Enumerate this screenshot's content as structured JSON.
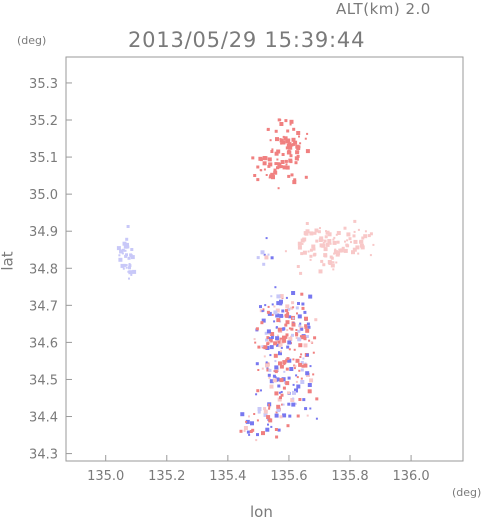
{
  "header": {
    "altitude_label": "ALT(km) 2.0",
    "datetime": "2013/05/29 15:39:44"
  },
  "chart_data": {
    "type": "scatter",
    "xlabel": "lon",
    "ylabel": "lat",
    "x_unit": "(deg)",
    "y_unit": "(deg)",
    "xlim": [
      134.87,
      136.17
    ],
    "ylim": [
      34.28,
      35.37
    ],
    "x_ticks": [
      135.0,
      135.2,
      135.4,
      135.6,
      135.8,
      136.0
    ],
    "x_tick_labels": [
      "135.0",
      "135.2",
      "135.4",
      "135.6",
      "135.8",
      "136.0"
    ],
    "y_ticks": [
      34.3,
      34.4,
      34.5,
      34.6,
      34.7,
      34.8,
      34.9,
      35.0,
      35.1,
      35.2,
      35.3
    ],
    "y_tick_labels": [
      "34.3",
      "34.4",
      "34.5",
      "34.6",
      "34.7",
      "34.8",
      "34.9",
      "35.0",
      "35.1",
      "35.2",
      "35.3"
    ],
    "grid": false,
    "colors": {
      "positive": "#f08080",
      "negative": "#7878f0",
      "weak_positive": "#f8c8c8",
      "weak_negative": "#c8c8f8"
    },
    "clusters": [
      {
        "lon": 135.6,
        "lat": 35.12,
        "spread": [
          0.03,
          0.04
        ],
        "count": 70,
        "polarity": "positive"
      },
      {
        "lon": 135.53,
        "lat": 35.06,
        "spread": [
          0.025,
          0.02
        ],
        "count": 30,
        "polarity": "positive"
      },
      {
        "lon": 135.07,
        "lat": 34.84,
        "spread": [
          0.01,
          0.03
        ],
        "count": 35,
        "polarity": "weak_negative"
      },
      {
        "lon": 135.72,
        "lat": 34.86,
        "spread": [
          0.05,
          0.03
        ],
        "count": 80,
        "polarity": "weak_positive"
      },
      {
        "lon": 135.83,
        "lat": 34.88,
        "spread": [
          0.025,
          0.02
        ],
        "count": 25,
        "polarity": "weak_positive"
      },
      {
        "lon": 135.59,
        "lat": 34.68,
        "spread": [
          0.04,
          0.03
        ],
        "count": 60,
        "polarity": "mixed"
      },
      {
        "lon": 135.58,
        "lat": 34.6,
        "spread": [
          0.05,
          0.04
        ],
        "count": 110,
        "polarity": "mixed"
      },
      {
        "lon": 135.59,
        "lat": 34.5,
        "spread": [
          0.05,
          0.03
        ],
        "count": 80,
        "polarity": "mixed"
      },
      {
        "lon": 135.57,
        "lat": 34.41,
        "spread": [
          0.05,
          0.02
        ],
        "count": 40,
        "polarity": "mixed"
      },
      {
        "lon": 135.5,
        "lat": 34.36,
        "spread": [
          0.03,
          0.01
        ],
        "count": 15,
        "polarity": "mixed"
      },
      {
        "lon": 135.52,
        "lat": 34.84,
        "spread": [
          0.01,
          0.02
        ],
        "count": 8,
        "polarity": "mixed"
      }
    ]
  }
}
